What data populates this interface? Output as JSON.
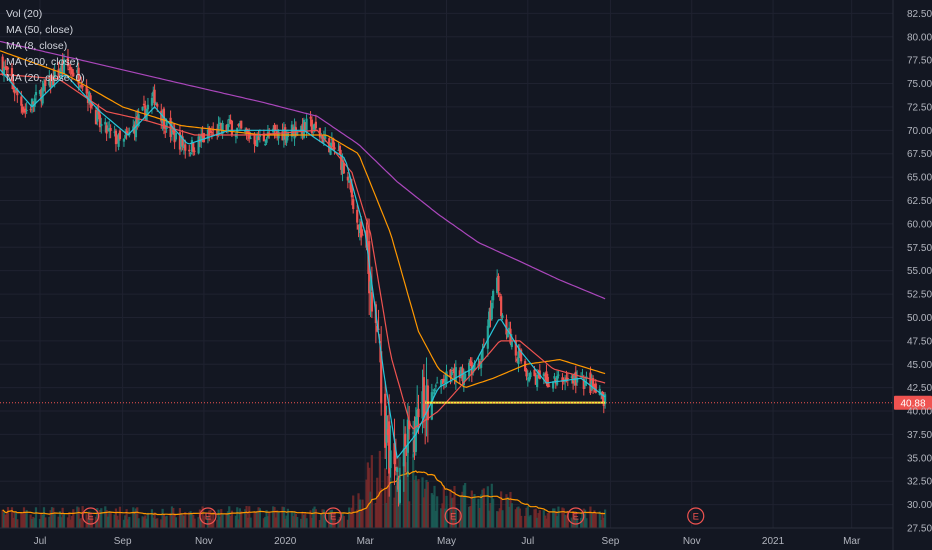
{
  "colors": {
    "background": "#131722",
    "grid": "#1f2230",
    "axis_text": "#b2b5be",
    "candle_up": "#26a69a",
    "candle_down": "#ef5350",
    "ma8": "#26c6da",
    "ma20": "#ef5350",
    "ma50": "#ff9800",
    "ma200": "#ab47bc",
    "vol_ma": "#ff9800",
    "volume_up": "#1b5e57",
    "volume_down": "#7a2a2a",
    "support_line": "#ffeb3b",
    "price_line": "#ef5350",
    "price_tag": "#ef5350",
    "earnings": "#ef5350"
  },
  "legend": [
    "Vol (20)",
    "MA (50, close)",
    "MA (8, close)",
    "MA (200, close)",
    "MA (20, close, 0)"
  ],
  "chart_data": {
    "type": "candlestick",
    "x_axis": {
      "tick_labels": [
        "Jul",
        "Sep",
        "Nov",
        "2020",
        "Mar",
        "May",
        "Jul",
        "Sep",
        "Nov",
        "2021",
        "Mar"
      ],
      "range": [
        "2019-06-01",
        "2021-04-01"
      ]
    },
    "y_axis": {
      "side": "right",
      "range": [
        27.5,
        83.5
      ],
      "tick_labels": [
        "82.50",
        "80.00",
        "77.50",
        "75.00",
        "72.50",
        "70.00",
        "67.50",
        "65.00",
        "62.50",
        "60.00",
        "57.50",
        "55.00",
        "52.50",
        "50.00",
        "47.50",
        "45.00",
        "42.50",
        "40.00",
        "37.50",
        "35.00",
        "32.50",
        "30.00",
        "27.50"
      ]
    },
    "last_price": 40.88,
    "last_price_label": "40.88",
    "support_level": 40.9,
    "support_range": [
      "2020-04-15",
      "2020-08-28"
    ],
    "close_anchors": [
      [
        "2019-06-01",
        77.5
      ],
      [
        "2019-06-20",
        72
      ],
      [
        "2019-07-05",
        74.5
      ],
      [
        "2019-07-20",
        77
      ],
      [
        "2019-08-01",
        75.5
      ],
      [
        "2019-08-15",
        70.5
      ],
      [
        "2019-09-01",
        68.5
      ],
      [
        "2019-09-15",
        71.5
      ],
      [
        "2019-09-25",
        73.5
      ],
      [
        "2019-10-05",
        70
      ],
      [
        "2019-10-20",
        68
      ],
      [
        "2019-11-05",
        69.5
      ],
      [
        "2019-11-20",
        70.5
      ],
      [
        "2019-12-10",
        69
      ],
      [
        "2020-01-05",
        70
      ],
      [
        "2020-01-20",
        70.5
      ],
      [
        "2020-02-10",
        67.5
      ],
      [
        "2020-02-20",
        63
      ],
      [
        "2020-03-01",
        57
      ],
      [
        "2020-03-10",
        47
      ],
      [
        "2020-03-16",
        39
      ],
      [
        "2020-03-23",
        33
      ],
      [
        "2020-04-01",
        36.5
      ],
      [
        "2020-04-15",
        40
      ],
      [
        "2020-04-25",
        43
      ],
      [
        "2020-05-10",
        44
      ],
      [
        "2020-05-25",
        44.5
      ],
      [
        "2020-06-08",
        54
      ],
      [
        "2020-06-12",
        50
      ],
      [
        "2020-06-20",
        47
      ],
      [
        "2020-07-01",
        44
      ],
      [
        "2020-07-15",
        43
      ],
      [
        "2020-08-01",
        43.5
      ],
      [
        "2020-08-15",
        43
      ],
      [
        "2020-08-28",
        40.9
      ]
    ],
    "ma8_anchors": [
      [
        "2019-06-01",
        76.5
      ],
      [
        "2019-06-25",
        72.5
      ],
      [
        "2019-07-20",
        76
      ],
      [
        "2019-08-15",
        72
      ],
      [
        "2019-09-05",
        69.5
      ],
      [
        "2019-09-25",
        72.5
      ],
      [
        "2019-10-20",
        68.5
      ],
      [
        "2019-11-20",
        70
      ],
      [
        "2020-01-15",
        70
      ],
      [
        "2020-02-15",
        67
      ],
      [
        "2020-03-01",
        59
      ],
      [
        "2020-03-15",
        44
      ],
      [
        "2020-03-25",
        35
      ],
      [
        "2020-04-08",
        37.5
      ],
      [
        "2020-04-25",
        42.5
      ],
      [
        "2020-05-20",
        44.5
      ],
      [
        "2020-06-10",
        50
      ],
      [
        "2020-06-25",
        46.5
      ],
      [
        "2020-07-15",
        43
      ],
      [
        "2020-08-10",
        43.5
      ],
      [
        "2020-08-28",
        41.5
      ]
    ],
    "ma20_anchors": [
      [
        "2019-06-01",
        76
      ],
      [
        "2019-07-15",
        75.5
      ],
      [
        "2019-08-20",
        72
      ],
      [
        "2019-09-20",
        71
      ],
      [
        "2019-10-25",
        69.5
      ],
      [
        "2019-12-10",
        69.5
      ],
      [
        "2020-01-25",
        70
      ],
      [
        "2020-02-20",
        65.5
      ],
      [
        "2020-03-05",
        59
      ],
      [
        "2020-03-20",
        46
      ],
      [
        "2020-04-05",
        38
      ],
      [
        "2020-04-25",
        40
      ],
      [
        "2020-05-20",
        44
      ],
      [
        "2020-06-10",
        47.5
      ],
      [
        "2020-06-25",
        47.5
      ],
      [
        "2020-07-20",
        44.5
      ],
      [
        "2020-08-28",
        43
      ]
    ],
    "ma50_anchors": [
      [
        "2019-06-01",
        78.5
      ],
      [
        "2019-07-20",
        76
      ],
      [
        "2019-09-01",
        72.5
      ],
      [
        "2019-10-15",
        70.5
      ],
      [
        "2019-12-15",
        69.5
      ],
      [
        "2020-02-01",
        69.5
      ],
      [
        "2020-02-25",
        67.5
      ],
      [
        "2020-03-20",
        59
      ],
      [
        "2020-04-10",
        48.5
      ],
      [
        "2020-04-25",
        44.5
      ],
      [
        "2020-05-15",
        42.5
      ],
      [
        "2020-06-05",
        43.5
      ],
      [
        "2020-06-30",
        45
      ],
      [
        "2020-07-25",
        45.5
      ],
      [
        "2020-08-28",
        44
      ]
    ],
    "ma200_anchors": [
      [
        "2019-06-01",
        79.5
      ],
      [
        "2019-08-01",
        77.5
      ],
      [
        "2019-10-15",
        75
      ],
      [
        "2019-12-15",
        73
      ],
      [
        "2020-01-25",
        71.5
      ],
      [
        "2020-02-25",
        68.5
      ],
      [
        "2020-03-25",
        64.5
      ],
      [
        "2020-04-25",
        61
      ],
      [
        "2020-05-25",
        58
      ],
      [
        "2020-06-25",
        56
      ],
      [
        "2020-07-25",
        54
      ],
      [
        "2020-08-28",
        52
      ]
    ],
    "earnings_dates": [
      "2019-08-08",
      "2019-11-04",
      "2020-02-06",
      "2020-05-06",
      "2020-08-06",
      "2020-11-04"
    ],
    "volume_ma_note": ""
  }
}
